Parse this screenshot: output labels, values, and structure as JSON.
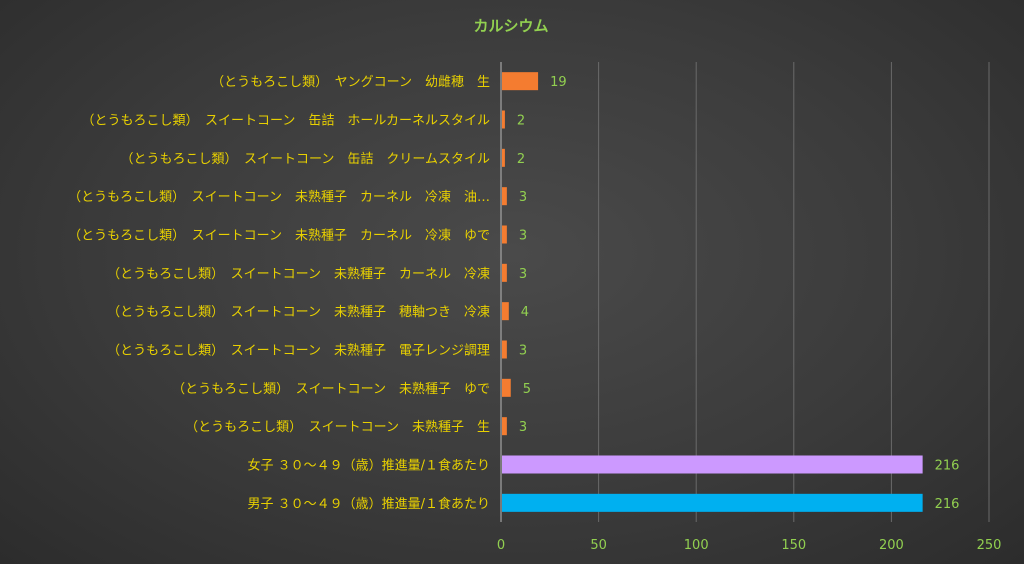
{
  "chart_data": {
    "type": "bar",
    "orientation": "horizontal",
    "title": "カルシウム",
    "xlabel": "",
    "ylabel": "",
    "xlim": [
      0,
      250
    ],
    "ticks": [
      0,
      50,
      100,
      150,
      200,
      250
    ],
    "grid": true,
    "categories": [
      "（とうもろこし類）　ヤングコーン　幼雌穂　生",
      "（とうもろこし類）　スイートコーン　缶詰　ホールカーネルスタイル",
      "（とうもろこし類）　スイートコーン　缶詰　クリームスタイル",
      "（とうもろこし類）　スイートコーン　未熟種子　カーネル　冷凍　油…",
      "（とうもろこし類）　スイートコーン　未熟種子　カーネル　冷凍　ゆで",
      "（とうもろこし類）　スイートコーン　未熟種子　カーネル　冷凍",
      "（とうもろこし類）　スイートコーン　未熟種子　穂軸つき　冷凍",
      "（とうもろこし類）　スイートコーン　未熟種子　電子レンジ調理",
      "（とうもろこし類）　スイートコーン　未熟種子　ゆで",
      "（とうもろこし類）　スイートコーン　未熟種子　生",
      "女子 ３０～４９（歳）推進量/１食あたり",
      "男子 ３０～４９（歳）推進量/１食あたり"
    ],
    "values": [
      19,
      2,
      2,
      3,
      3,
      3,
      4,
      3,
      5,
      3,
      216,
      216
    ],
    "bar_colors": [
      "#f47c30",
      "#f47c30",
      "#f47c30",
      "#f47c30",
      "#f47c30",
      "#f47c30",
      "#f47c30",
      "#f47c30",
      "#f47c30",
      "#f47c30",
      "#cc99ff",
      "#00b0f0"
    ]
  },
  "colors": {
    "title": "#92d050",
    "category_text": "#e8d000",
    "tick_text": "#92d050",
    "data_label": "#92d050",
    "grid": "#6a6a6a",
    "axis": "#b8b8b8"
  }
}
